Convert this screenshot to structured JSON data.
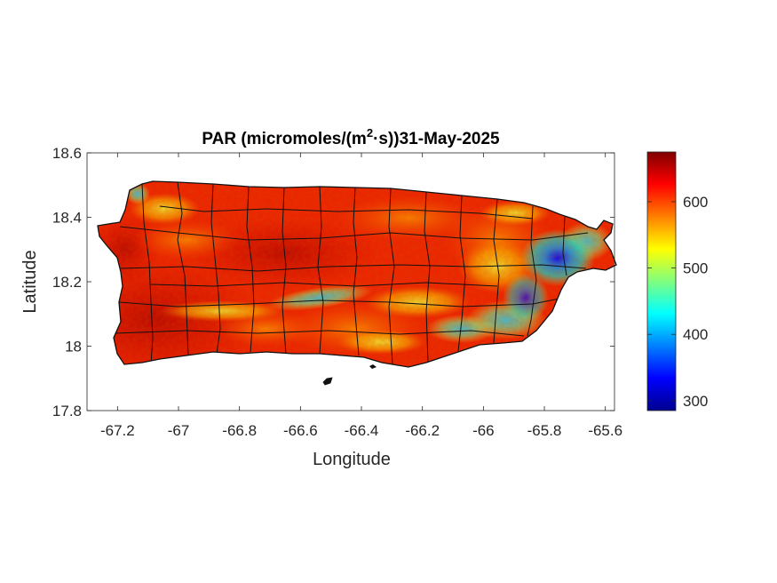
{
  "chart_data": {
    "type": "heatmap",
    "title_prefix": "PAR (micromoles/(m",
    "title_superscript": "2",
    "title_suffix": "·s))31-May-2025",
    "xlabel": "Longitude",
    "ylabel": "Latitude",
    "xlim": [
      -67.3,
      -65.57
    ],
    "ylim": [
      17.8,
      18.6
    ],
    "xticks": [
      -67.2,
      -67,
      -66.8,
      -66.6,
      -66.4,
      -66.2,
      -66,
      -65.8,
      -65.6
    ],
    "xtick_labels": [
      "-67.2",
      "-67",
      "-66.8",
      "-66.6",
      "-66.4",
      "-66.2",
      "-66",
      "-65.8",
      "-65.6"
    ],
    "yticks": [
      17.8,
      18,
      18.2,
      18.4,
      18.6
    ],
    "ytick_labels": [
      "17.8",
      "18",
      "18.2",
      "18.4",
      "18.6"
    ],
    "colorbar": {
      "colormap": "jet",
      "range": [
        285,
        675
      ],
      "ticks": [
        300,
        400,
        500,
        600
      ],
      "tick_labels": [
        "300",
        "400",
        "500",
        "600"
      ]
    },
    "field_summary": {
      "typical_value": 640,
      "low_value_regions": [
        {
          "lon": -65.8,
          "lat": 18.28,
          "value": 300
        },
        {
          "lon": -65.88,
          "lat": 18.12,
          "value": 400
        },
        {
          "lon": -66.1,
          "lat": 18.05,
          "value": 430
        },
        {
          "lon": -66.65,
          "lat": 18.14,
          "value": 450
        },
        {
          "lon": -67.14,
          "lat": 18.46,
          "value": 500
        }
      ]
    }
  }
}
